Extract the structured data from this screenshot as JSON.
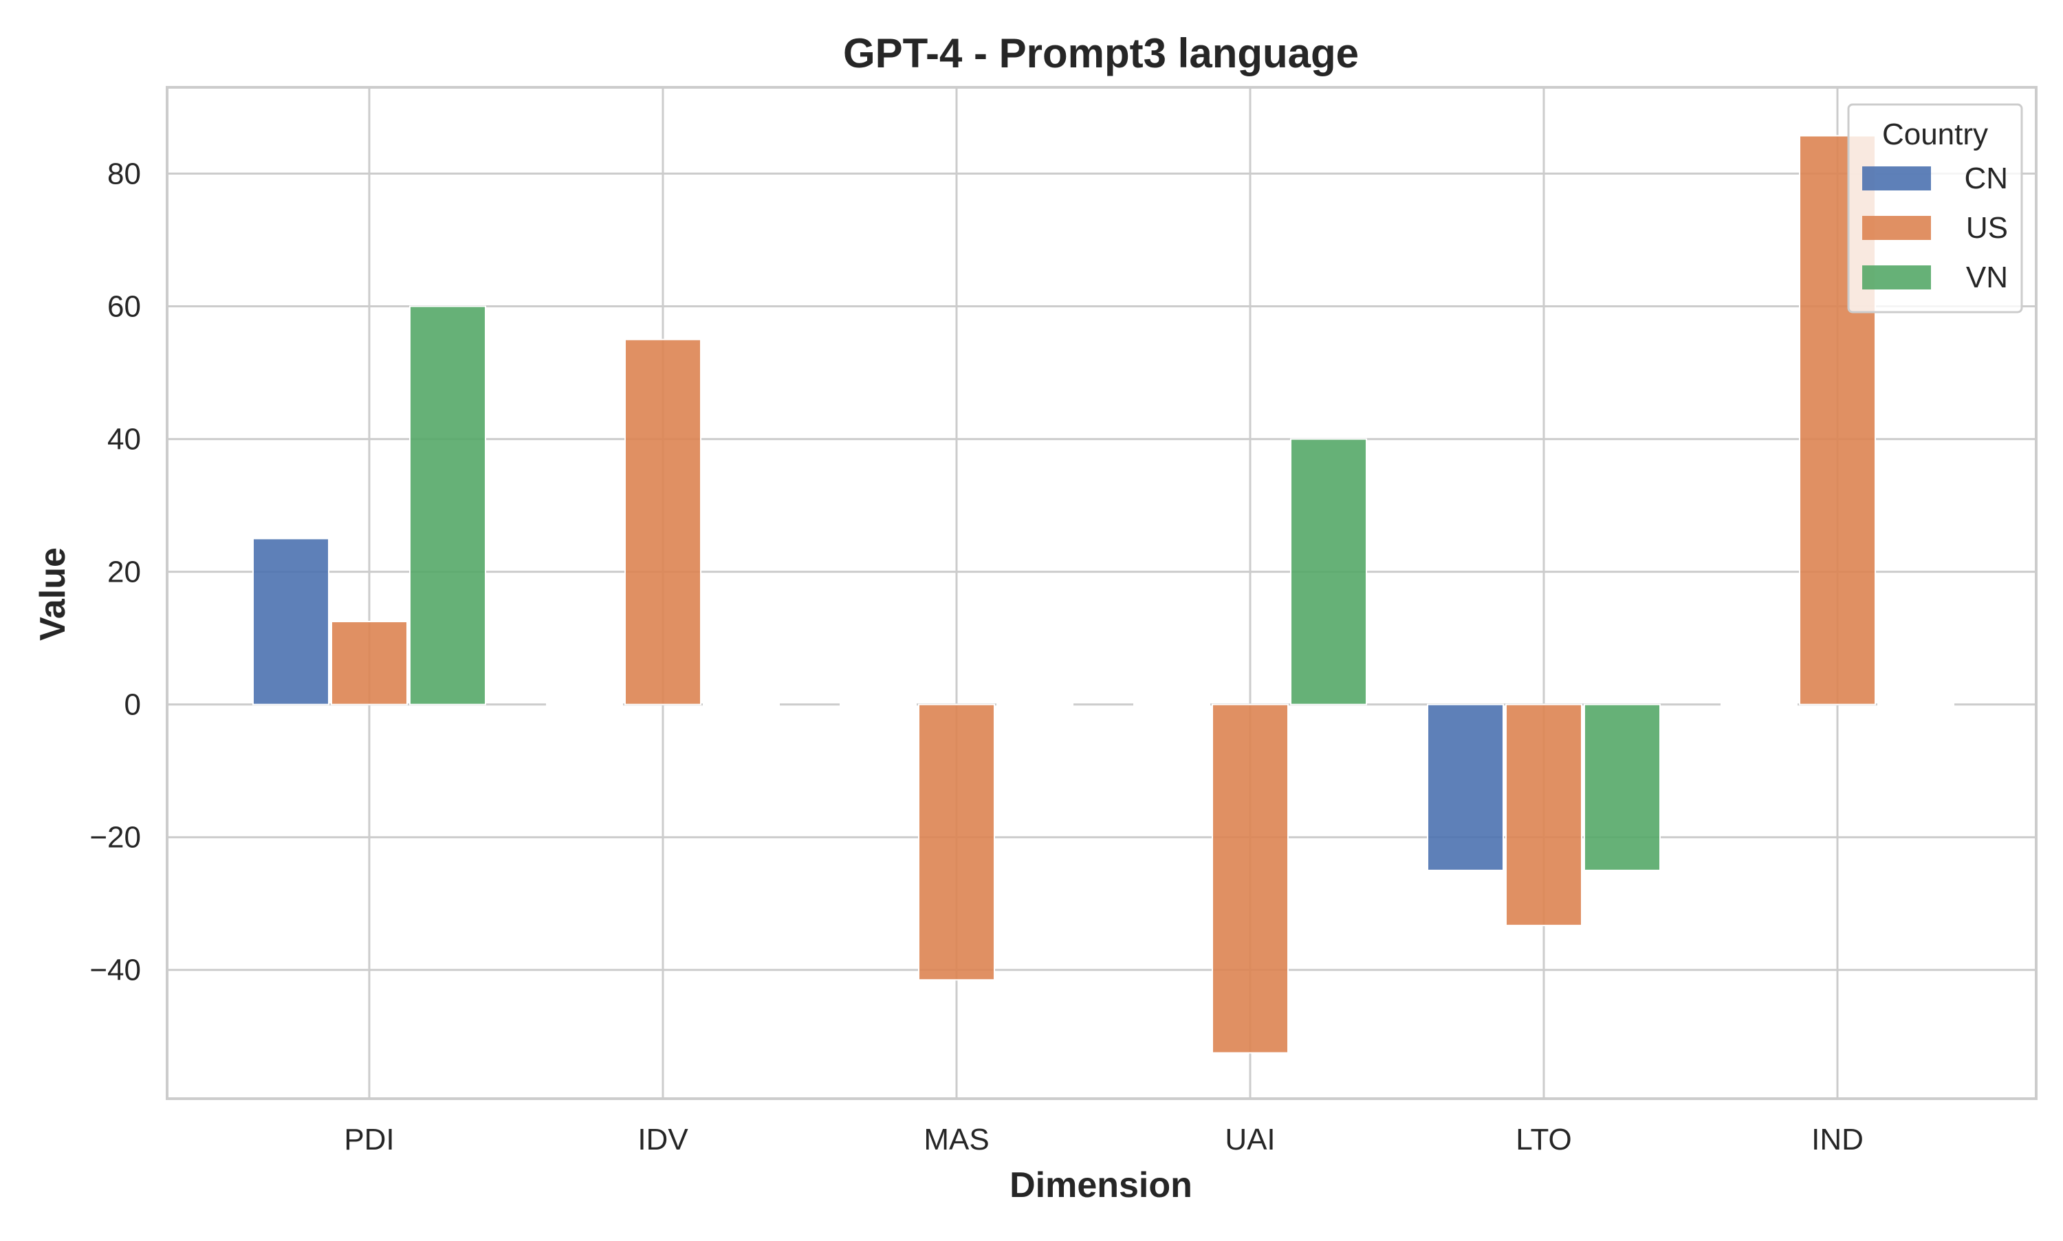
{
  "chart_data": {
    "type": "bar",
    "title": "GPT-4 - Prompt3 language",
    "xlabel": "Dimension",
    "ylabel": "Value",
    "categories": [
      "PDI",
      "IDV",
      "MAS",
      "UAI",
      "LTO",
      "IND"
    ],
    "series": [
      {
        "name": "CN",
        "color": "#4c72b0",
        "values": [
          25,
          0,
          0,
          0,
          -25,
          0
        ]
      },
      {
        "name": "US",
        "color": "#dd8452",
        "values": [
          12.5,
          55,
          -41.5,
          -52.5,
          -33.3,
          85.7
        ]
      },
      {
        "name": "VN",
        "color": "#55a868",
        "values": [
          60,
          0,
          0,
          40,
          -25,
          0
        ]
      }
    ],
    "ylim": [
      -59.4,
      93
    ],
    "yticks": [
      -40,
      -20,
      0,
      20,
      40,
      60,
      80
    ],
    "ytick_labels": [
      "−40",
      "−20",
      "0",
      "20",
      "40",
      "60",
      "80"
    ],
    "grid": true,
    "legend": {
      "title": "Country",
      "position": "top-right"
    }
  }
}
